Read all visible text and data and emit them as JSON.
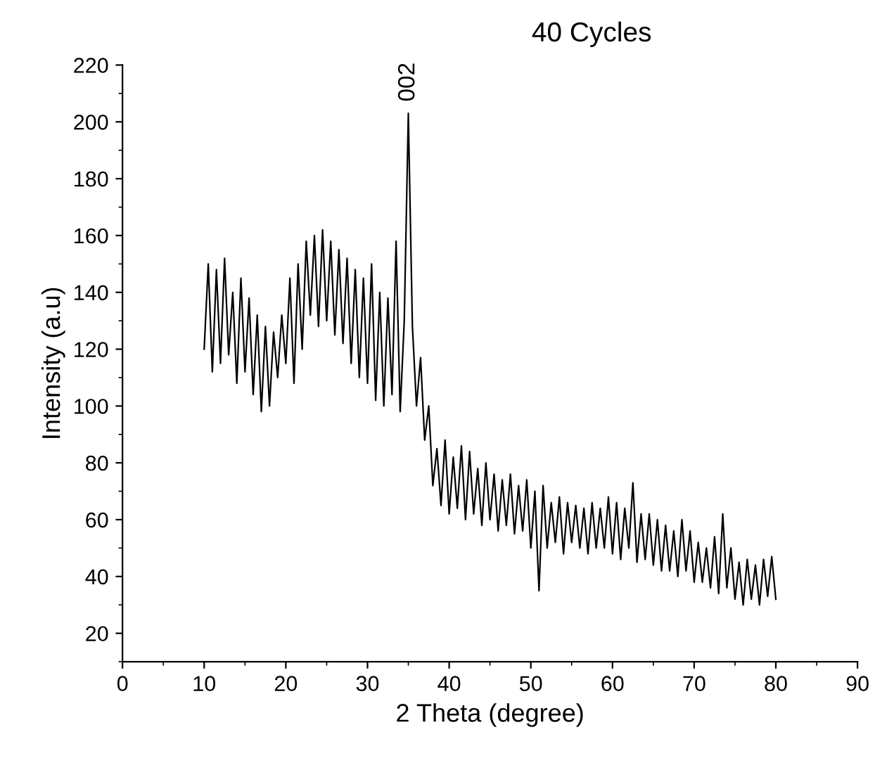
{
  "chart_data": {
    "type": "line",
    "title": "40 Cycles",
    "xlabel": "2 Theta (degree)",
    "ylabel": "Intensity (a.u)",
    "xlim": [
      0,
      90
    ],
    "xticks": [
      0,
      10,
      20,
      30,
      40,
      50,
      60,
      70,
      80,
      90
    ],
    "ylim": [
      10,
      220
    ],
    "yticks": [
      20,
      40,
      60,
      80,
      100,
      120,
      140,
      160,
      180,
      200,
      220
    ],
    "grid": false,
    "legend": false,
    "annotations": [
      {
        "text": "002",
        "x": 35,
        "y": 203
      }
    ],
    "series": [
      {
        "color": "#000000",
        "x": [
          10,
          10.5,
          11,
          11.5,
          12,
          12.5,
          13,
          13.5,
          14,
          14.5,
          15,
          15.5,
          16,
          16.5,
          17,
          17.5,
          18,
          18.5,
          19,
          19.5,
          20,
          20.5,
          21,
          21.5,
          22,
          22.5,
          23,
          23.5,
          24,
          24.5,
          25,
          25.5,
          26,
          26.5,
          27,
          27.5,
          28,
          28.5,
          29,
          29.5,
          30,
          30.5,
          31,
          31.5,
          32,
          32.5,
          33,
          33.5,
          34,
          34.5,
          35,
          35.5,
          36,
          36.5,
          37,
          37.5,
          38,
          38.5,
          39,
          39.5,
          40,
          40.5,
          41,
          41.5,
          42,
          42.5,
          43,
          43.5,
          44,
          44.5,
          45,
          45.5,
          46,
          46.5,
          47,
          47.5,
          48,
          48.5,
          49,
          49.5,
          50,
          50.5,
          51,
          51.5,
          52,
          52.5,
          53,
          53.5,
          54,
          54.5,
          55,
          55.5,
          56,
          56.5,
          57,
          57.5,
          58,
          58.5,
          59,
          59.5,
          60,
          60.5,
          61,
          61.5,
          62,
          62.5,
          63,
          63.5,
          64,
          64.5,
          65,
          65.5,
          66,
          66.5,
          67,
          67.5,
          68,
          68.5,
          69,
          69.5,
          70,
          70.5,
          71,
          71.5,
          72,
          72.5,
          73,
          73.5,
          74,
          74.5,
          75,
          75.5,
          76,
          76.5,
          77,
          77.5,
          78,
          78.5,
          79,
          79.5,
          80
        ],
        "values": [
          120,
          150,
          112,
          148,
          115,
          152,
          118,
          140,
          108,
          145,
          112,
          138,
          104,
          132,
          98,
          128,
          100,
          126,
          110,
          132,
          115,
          145,
          108,
          150,
          120,
          158,
          132,
          160,
          128,
          162,
          130,
          158,
          125,
          155,
          122,
          152,
          115,
          148,
          110,
          145,
          108,
          150,
          102,
          140,
          100,
          138,
          104,
          158,
          98,
          130,
          203,
          128,
          100,
          117,
          88,
          100,
          72,
          85,
          65,
          88,
          62,
          82,
          64,
          86,
          60,
          84,
          62,
          78,
          58,
          80,
          60,
          76,
          56,
          74,
          58,
          76,
          55,
          72,
          56,
          74,
          50,
          70,
          35,
          72,
          50,
          66,
          52,
          68,
          48,
          66,
          52,
          65,
          50,
          64,
          48,
          66,
          50,
          64,
          50,
          68,
          48,
          66,
          46,
          64,
          50,
          73,
          45,
          62,
          46,
          62,
          44,
          60,
          42,
          58,
          42,
          56,
          40,
          60,
          42,
          56,
          38,
          52,
          38,
          50,
          36,
          54,
          34,
          62,
          36,
          50,
          32,
          45,
          30,
          46,
          32,
          44,
          30,
          46,
          33,
          47,
          32
        ]
      }
    ]
  }
}
